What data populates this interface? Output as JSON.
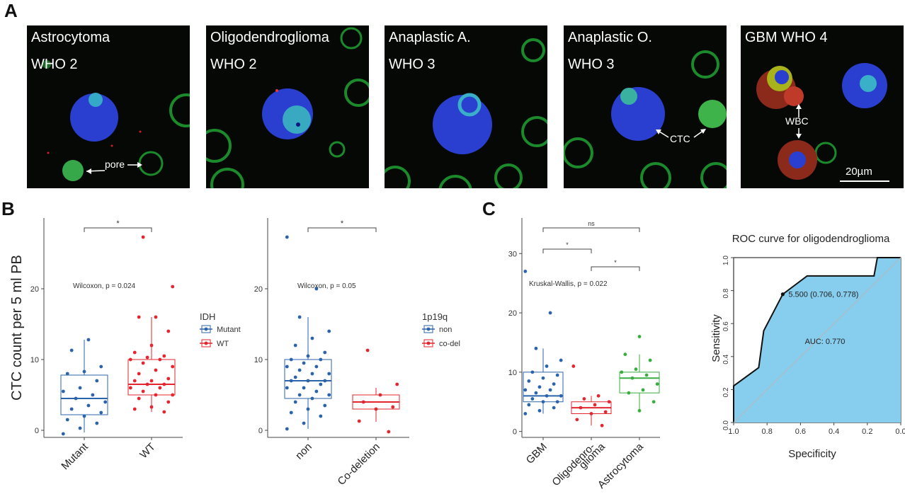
{
  "panel_labels": {
    "a": "A",
    "b": "B",
    "c": "C"
  },
  "panels": [
    {
      "line1": "Astrocytoma",
      "line2": "WHO 2",
      "annotation": "pore"
    },
    {
      "line1": "Oligodendroglioma",
      "line2": "WHO 2"
    },
    {
      "line1": "Anaplastic A.",
      "line2": "WHO 3"
    },
    {
      "line1": "Anaplastic O.",
      "line2": "WHO 3",
      "annotation": "CTC"
    },
    {
      "line1": "GBM WHO 4",
      "line2": "",
      "annotation": "WBC",
      "scale_bar": "20µm"
    }
  ],
  "chart_data": [
    {
      "type": "box",
      "ylabel": "CTC count per 5 ml PB",
      "categories": [
        "Mutant",
        "WT"
      ],
      "colors": [
        "#2b64ac",
        "#e3262f"
      ],
      "ylim": [
        -1,
        30
      ],
      "yticks": [
        0,
        10,
        20
      ],
      "legend": {
        "title": "IDH",
        "entries": [
          "Mutant",
          "WT"
        ]
      },
      "stat_label": "Wilcoxon, p = 0.024",
      "significance": "*",
      "boxes": [
        {
          "q1": 2.2,
          "median": 4.5,
          "q3": 7.8,
          "whisker_low": -0.3,
          "whisker_high": 12.8
        },
        {
          "q1": 5,
          "median": 6.5,
          "q3": 10,
          "whisker_low": 2.6,
          "whisker_high": 16
        }
      ],
      "points": [
        [
          -0.5,
          0.3,
          1,
          1.5,
          2,
          2.5,
          3,
          3.5,
          4,
          4.5,
          5,
          5.5,
          6,
          7,
          8,
          8.3,
          9,
          11.3,
          12.8
        ],
        [
          2.6,
          3,
          3.3,
          4,
          4.5,
          5,
          5,
          5.5,
          6,
          6,
          6.5,
          6.5,
          7,
          7,
          7.3,
          8,
          8.5,
          9,
          9.5,
          10,
          10,
          10.3,
          10.5,
          11,
          12,
          14,
          16,
          16,
          20.3,
          27.3
        ]
      ]
    },
    {
      "type": "box",
      "categories": [
        "non",
        "Co-deletion"
      ],
      "colors": [
        "#2b64ac",
        "#e3262f"
      ],
      "ylim": [
        -1,
        30
      ],
      "yticks": [
        0,
        10,
        20
      ],
      "legend": {
        "title": "1p19q",
        "entries": [
          "non",
          "co-del"
        ]
      },
      "stat_label": "Wilcoxon, p = 0.05",
      "significance": "*",
      "boxes": [
        {
          "q1": 4.5,
          "median": 7,
          "q3": 10,
          "whisker_low": 0.2,
          "whisker_high": 16
        },
        {
          "q1": 3,
          "median": 4,
          "q3": 5,
          "whisker_low": 1.2,
          "whisker_high": 6
        }
      ],
      "points": [
        [
          0.2,
          1,
          2,
          2.5,
          3,
          3.5,
          4,
          4.5,
          5,
          5,
          5.5,
          6,
          6,
          6.5,
          7,
          7,
          7,
          7.5,
          8,
          8,
          8.5,
          9,
          9,
          9.5,
          10,
          10,
          10.5,
          11,
          12,
          13,
          14,
          16,
          20,
          27.3
        ],
        [
          -0.2,
          1.3,
          3,
          3.3,
          4,
          5,
          6.5,
          11.3
        ]
      ]
    },
    {
      "type": "box",
      "categories": [
        "GBM",
        "Oligodenro-\nglioma",
        "Astrocytoma"
      ],
      "colors": [
        "#2b64ac",
        "#e3262f",
        "#3aad40"
      ],
      "ylim": [
        -1,
        36
      ],
      "yticks": [
        0,
        10,
        20,
        30
      ],
      "stat_label": "Kruskal-Wallis, p = 0.022",
      "comparisons": [
        {
          "from": 0,
          "to": 2,
          "label": "ns"
        },
        {
          "from": 0,
          "to": 1,
          "label": "*"
        },
        {
          "from": 1,
          "to": 2,
          "label": "*"
        }
      ],
      "boxes": [
        {
          "q1": 5,
          "median": 6,
          "q3": 10,
          "whisker_low": 3,
          "whisker_high": 14
        },
        {
          "q1": 3,
          "median": 4,
          "q3": 5,
          "whisker_low": 1,
          "whisker_high": 6
        },
        {
          "q1": 6.5,
          "median": 9,
          "q3": 10,
          "whisker_low": 3.5,
          "whisker_high": 13
        }
      ],
      "points": [
        [
          3,
          3.5,
          4,
          4.5,
          5,
          5,
          5.5,
          6,
          6,
          6.5,
          7,
          7,
          7.5,
          8,
          8.5,
          9,
          9.5,
          10,
          11,
          12,
          14,
          20,
          27
        ],
        [
          1,
          2,
          3,
          3.3,
          4,
          4.5,
          5,
          5.5,
          6,
          11
        ],
        [
          3.5,
          5,
          6.5,
          7,
          8,
          9,
          9.5,
          10,
          10.5,
          12,
          13,
          16
        ]
      ]
    },
    {
      "type": "line",
      "title": "ROC curve for oligodendroglioma",
      "xlabel": "Specificity",
      "ylabel": "Sensitivity",
      "xlim": [
        1,
        0
      ],
      "ylim": [
        0,
        1
      ],
      "ticks": [
        1,
        0.8,
        0.6,
        0.4,
        0.2,
        0
      ],
      "tick_labels": [
        "1.0",
        "0.8",
        "0.6",
        "0.4",
        "0.2",
        "0.0"
      ],
      "fill_color": "#87cdee",
      "curve": [
        [
          1,
          0
        ],
        [
          1,
          0.222
        ],
        [
          0.85,
          0.333
        ],
        [
          0.82,
          0.556
        ],
        [
          0.706,
          0.778
        ],
        [
          0.56,
          0.889
        ],
        [
          0.16,
          0.889
        ],
        [
          0.14,
          1
        ],
        [
          0,
          1
        ]
      ],
      "threshold_point": [
        0.706,
        0.778
      ],
      "threshold_label": "5.500 (0.706, 0.778)",
      "auc_label": "AUC: 0.770"
    }
  ]
}
